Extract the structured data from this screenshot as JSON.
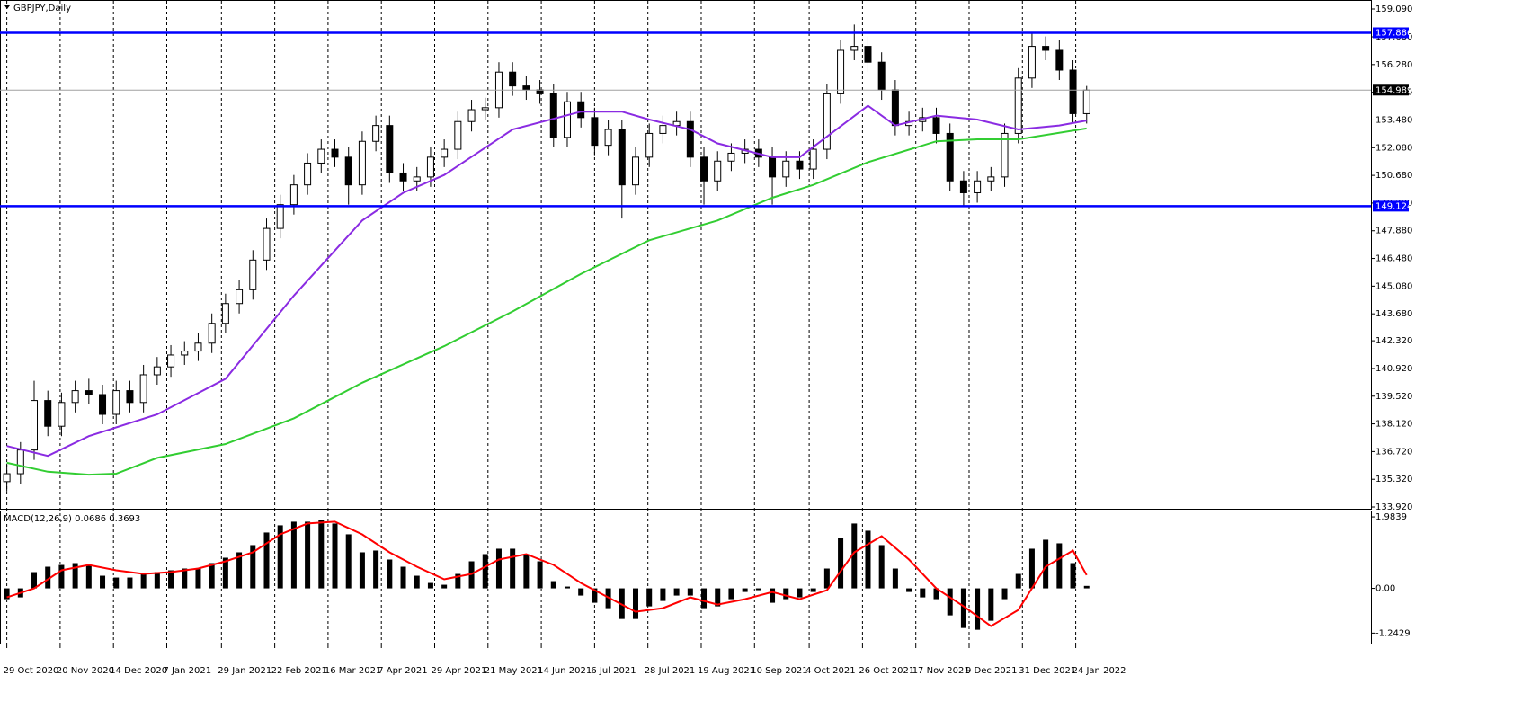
{
  "chart_data": [
    {
      "type": "candlestick",
      "title": "GBPJPY,Daily",
      "open": [
        135.2,
        135.6,
        136.8,
        139.3,
        138.0,
        139.2,
        139.8,
        139.6,
        138.6,
        139.8,
        139.2,
        140.6,
        141.0,
        141.6,
        141.8,
        142.2,
        143.2,
        144.2,
        144.9,
        146.4,
        148.0,
        149.2,
        150.2,
        151.3,
        152.0,
        151.6,
        150.2,
        152.4,
        153.2,
        150.8,
        150.4,
        150.6,
        151.6,
        152.0,
        153.4,
        154.0,
        154.1,
        155.9,
        155.2,
        155.0,
        154.8,
        152.6,
        154.4,
        153.6,
        152.2,
        153.0,
        150.2,
        151.6,
        152.8,
        153.2,
        153.4,
        151.6,
        150.4,
        151.4,
        151.8,
        152.0,
        151.6,
        150.6,
        151.4,
        151.0,
        152.0,
        154.8,
        157.0,
        157.2,
        156.4,
        155.0,
        153.2,
        153.4,
        153.6,
        152.8,
        150.4,
        149.8,
        150.4,
        150.6,
        152.8,
        155.6,
        157.2,
        157.0,
        156.0,
        153.8
      ],
      "high": [
        136.1,
        137.2,
        140.3,
        139.8,
        139.7,
        140.3,
        140.4,
        140.1,
        140.3,
        140.3,
        141.1,
        141.5,
        142.1,
        142.3,
        142.7,
        143.7,
        144.7,
        145.4,
        146.9,
        148.5,
        149.7,
        150.7,
        151.8,
        152.5,
        152.5,
        152.1,
        152.9,
        153.7,
        153.7,
        151.3,
        151.1,
        152.1,
        152.5,
        153.9,
        154.5,
        154.6,
        156.4,
        156.4,
        155.7,
        155.5,
        155.3,
        154.9,
        154.9,
        154.1,
        153.5,
        153.5,
        152.1,
        153.3,
        153.7,
        153.9,
        153.9,
        152.1,
        151.9,
        152.3,
        152.5,
        152.5,
        152.1,
        151.9,
        151.9,
        152.5,
        155.3,
        157.5,
        158.3,
        157.7,
        156.9,
        155.5,
        153.9,
        154.1,
        154.1,
        153.3,
        150.9,
        150.9,
        151.1,
        153.3,
        156.1,
        157.9,
        157.7,
        157.5,
        156.5,
        155.2
      ],
      "low": [
        134.7,
        135.1,
        136.3,
        137.5,
        137.5,
        138.7,
        139.1,
        138.1,
        138.1,
        138.7,
        138.7,
        140.1,
        140.5,
        141.1,
        141.3,
        141.7,
        142.7,
        143.7,
        144.4,
        145.9,
        147.5,
        148.7,
        149.7,
        150.8,
        151.1,
        149.2,
        149.7,
        151.9,
        150.3,
        149.9,
        149.9,
        150.1,
        151.1,
        151.5,
        152.9,
        153.5,
        153.6,
        154.7,
        154.5,
        154.3,
        152.1,
        152.1,
        153.1,
        151.7,
        151.7,
        148.5,
        149.7,
        151.1,
        152.3,
        152.7,
        151.1,
        149.2,
        149.9,
        150.9,
        151.3,
        151.1,
        149.2,
        150.1,
        150.5,
        150.5,
        151.5,
        154.3,
        156.5,
        155.9,
        154.5,
        152.7,
        152.7,
        152.9,
        152.3,
        149.9,
        149.1,
        149.3,
        149.9,
        150.1,
        152.3,
        155.1,
        156.5,
        155.5,
        153.3,
        153.3
      ],
      "close": [
        135.6,
        136.8,
        139.3,
        138.0,
        139.2,
        139.8,
        139.6,
        138.6,
        139.8,
        139.2,
        140.6,
        141.0,
        141.6,
        141.8,
        142.2,
        143.2,
        144.2,
        144.9,
        146.4,
        148.0,
        149.2,
        150.2,
        151.3,
        152.0,
        151.6,
        150.2,
        152.4,
        153.2,
        150.8,
        150.4,
        150.6,
        151.6,
        152.0,
        153.4,
        154.0,
        154.1,
        155.9,
        155.2,
        155.0,
        154.8,
        152.6,
        154.4,
        153.6,
        152.2,
        153.0,
        150.2,
        151.6,
        152.8,
        153.2,
        153.4,
        151.6,
        150.4,
        151.4,
        151.8,
        152.0,
        151.6,
        150.6,
        151.4,
        151.0,
        152.0,
        154.8,
        157.0,
        157.2,
        156.4,
        155.0,
        153.2,
        153.4,
        153.6,
        152.8,
        150.4,
        149.8,
        150.4,
        150.6,
        152.8,
        155.6,
        157.2,
        157.0,
        156.0,
        153.8,
        154.989
      ],
      "lines": [
        {
          "color": "#8a2be2",
          "x": [
            0,
            3,
            6,
            11,
            16,
            21,
            26,
            29,
            32,
            37,
            42,
            45,
            47,
            50,
            52,
            56,
            58,
            63,
            65,
            68,
            71,
            74,
            77,
            79
          ],
          "values": [
            137.0,
            136.5,
            137.5,
            138.6,
            140.4,
            144.6,
            148.4,
            149.8,
            150.7,
            153.0,
            153.9,
            153.9,
            153.5,
            153.0,
            152.3,
            151.6,
            151.6,
            154.2,
            153.2,
            153.7,
            153.5,
            153.0,
            153.2,
            153.45
          ]
        },
        {
          "color": "#32cd32",
          "x": [
            0,
            3,
            6,
            8,
            11,
            16,
            21,
            26,
            32,
            37,
            42,
            47,
            52,
            56,
            59,
            63,
            68,
            71,
            74,
            79
          ],
          "values": [
            136.15,
            135.7,
            135.55,
            135.6,
            136.4,
            137.1,
            138.4,
            140.2,
            142.05,
            143.8,
            145.7,
            147.4,
            148.4,
            149.55,
            150.2,
            151.35,
            152.4,
            152.5,
            152.5,
            153.05
          ]
        }
      ],
      "levels": [
        {
          "value": 157.886,
          "color": "#0000ff"
        },
        {
          "value": 149.124,
          "color": "#0000ff"
        }
      ],
      "current_price": {
        "value": 154.989,
        "color": "#000000"
      },
      "xlim": [
        -0.5,
        99.8
      ],
      "ylim": [
        133.83,
        159.544
      ],
      "yticks": [
        {
          "value": 159.09,
          "label": "159.090"
        },
        {
          "value": 157.68,
          "label": "157.680"
        },
        {
          "value": 156.28,
          "label": "156.280"
        },
        {
          "value": 154.88,
          "label": "154.880"
        },
        {
          "value": 153.48,
          "label": "153.480"
        },
        {
          "value": 152.08,
          "label": "152.080"
        },
        {
          "value": 150.68,
          "label": "150.680"
        },
        {
          "value": 149.28,
          "label": "149.280"
        },
        {
          "value": 147.88,
          "label": "147.880"
        },
        {
          "value": 146.48,
          "label": "146.480"
        },
        {
          "value": 145.08,
          "label": "145.080"
        },
        {
          "value": 143.68,
          "label": "143.680"
        },
        {
          "value": 142.32,
          "label": "142.320"
        },
        {
          "value": 140.92,
          "label": "140.920"
        },
        {
          "value": 139.52,
          "label": "139.520"
        },
        {
          "value": 138.12,
          "label": "138.120"
        },
        {
          "value": 136.72,
          "label": "136.720"
        },
        {
          "value": 135.32,
          "label": "135.320"
        },
        {
          "value": 133.92,
          "label": "133.920"
        }
      ],
      "xticks": [
        {
          "value": 0,
          "label": "29 Oct 2020"
        },
        {
          "value": 3.9,
          "label": "20 Nov 2020"
        },
        {
          "value": 7.8,
          "label": "14 Dec 2020"
        },
        {
          "value": 11.7,
          "label": "7 Jan 2021"
        },
        {
          "value": 15.7,
          "label": "29 Jan 2021"
        },
        {
          "value": 19.6,
          "label": "22 Feb 2021"
        },
        {
          "value": 23.5,
          "label": "16 Mar 2021"
        },
        {
          "value": 27.4,
          "label": "7 Apr 2021"
        },
        {
          "value": 31.3,
          "label": "29 Apr 2021"
        },
        {
          "value": 35.2,
          "label": "21 May 2021"
        },
        {
          "value": 39.1,
          "label": "14 Jun 2021"
        },
        {
          "value": 43.0,
          "label": "6 Jul 2021"
        },
        {
          "value": 46.9,
          "label": "28 Jul 2021"
        },
        {
          "value": 50.8,
          "label": "19 Aug 2021"
        },
        {
          "value": 54.7,
          "label": "10 Sep 2021"
        },
        {
          "value": 58.7,
          "label": "4 Oct 2021"
        },
        {
          "value": 62.6,
          "label": "26 Oct 2021"
        },
        {
          "value": 66.5,
          "label": "17 Nov 2021"
        },
        {
          "value": 70.4,
          "label": "9 Dec 2021"
        },
        {
          "value": 74.3,
          "label": "31 Dec 2021"
        },
        {
          "value": 78.2,
          "label": "24 Jan 2022"
        }
      ],
      "grid": true
    },
    {
      "type": "macd",
      "title": "MACD(12,26,9) 0.0686 0.3693",
      "histogram": {
        "color": "#000000",
        "values": [
          -0.3,
          -0.25,
          0.45,
          0.6,
          0.65,
          0.7,
          0.65,
          0.35,
          0.3,
          0.3,
          0.4,
          0.45,
          0.5,
          0.55,
          0.55,
          0.7,
          0.85,
          1.0,
          1.2,
          1.55,
          1.75,
          1.85,
          1.85,
          1.9,
          1.8,
          1.5,
          1.0,
          1.05,
          0.8,
          0.6,
          0.35,
          0.15,
          0.1,
          0.4,
          0.75,
          0.95,
          1.1,
          1.1,
          0.95,
          0.75,
          0.2,
          0.05,
          -0.2,
          -0.4,
          -0.55,
          -0.85,
          -0.85,
          -0.5,
          -0.35,
          -0.2,
          -0.2,
          -0.55,
          -0.5,
          -0.3,
          -0.1,
          -0.05,
          -0.4,
          -0.3,
          -0.25,
          -0.1,
          0.55,
          1.4,
          1.8,
          1.6,
          1.2,
          0.55,
          -0.1,
          -0.25,
          -0.3,
          -0.75,
          -1.1,
          -1.15,
          -0.9,
          -0.3,
          0.4,
          1.1,
          1.35,
          1.25,
          0.7,
          0.0686
        ]
      },
      "signal": {
        "color": "#ff0000",
        "x": [
          0,
          2,
          4,
          6,
          8,
          10,
          12,
          14,
          16,
          18,
          20,
          22,
          24,
          26,
          28,
          30,
          32,
          34,
          36,
          38,
          40,
          42,
          44,
          46,
          48,
          50,
          52,
          54,
          56,
          58,
          60,
          62,
          64,
          66,
          68,
          70,
          72,
          74,
          76,
          78,
          79
        ],
        "values": [
          -0.25,
          0.0,
          0.5,
          0.65,
          0.5,
          0.4,
          0.45,
          0.55,
          0.75,
          1.0,
          1.5,
          1.8,
          1.85,
          1.5,
          1.0,
          0.6,
          0.25,
          0.4,
          0.8,
          0.95,
          0.65,
          0.15,
          -0.25,
          -0.65,
          -0.55,
          -0.25,
          -0.45,
          -0.3,
          -0.1,
          -0.3,
          -0.05,
          1.0,
          1.45,
          0.8,
          0.0,
          -0.5,
          -1.05,
          -0.6,
          0.6,
          1.05,
          0.3693
        ]
      },
      "xlim": [
        -0.5,
        99.8
      ],
      "ylim": [
        -1.533,
        2.16
      ],
      "yticks": [
        1.9839,
        {
          "value": 0,
          "label": "0.00"
        },
        -1.2429
      ]
    }
  ]
}
